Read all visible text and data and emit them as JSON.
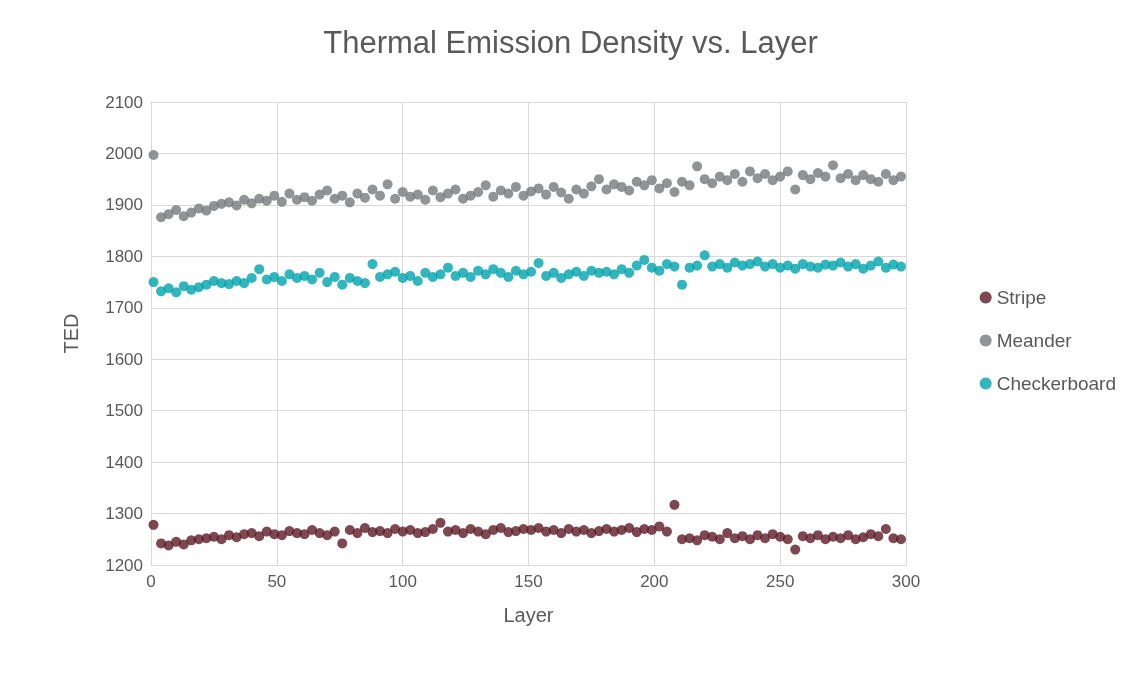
{
  "chart_data": {
    "type": "scatter",
    "title": "Thermal Emission Density vs. Layer",
    "xlabel": "Layer",
    "ylabel": "TED",
    "x": [
      1,
      4,
      7,
      10,
      13,
      16,
      19,
      22,
      25,
      28,
      31,
      34,
      37,
      40,
      43,
      46,
      49,
      52,
      55,
      58,
      61,
      64,
      67,
      70,
      73,
      76,
      79,
      82,
      85,
      88,
      91,
      94,
      97,
      100,
      103,
      106,
      109,
      112,
      115,
      118,
      121,
      124,
      127,
      130,
      133,
      136,
      139,
      142,
      145,
      148,
      151,
      154,
      157,
      160,
      163,
      166,
      169,
      172,
      175,
      178,
      181,
      184,
      187,
      190,
      193,
      196,
      199,
      202,
      205,
      208,
      211,
      214,
      217,
      220,
      223,
      226,
      229,
      232,
      235,
      238,
      241,
      244,
      247,
      250,
      253,
      256,
      259,
      262,
      265,
      268,
      271,
      274,
      277,
      280,
      283,
      286,
      289,
      292,
      295,
      298
    ],
    "series": [
      {
        "name": "Stripe",
        "color": "#5e1a27",
        "values": [
          1278,
          1242,
          1238,
          1245,
          1240,
          1248,
          1250,
          1252,
          1255,
          1250,
          1258,
          1254,
          1260,
          1262,
          1256,
          1265,
          1260,
          1258,
          1266,
          1262,
          1260,
          1268,
          1262,
          1258,
          1265,
          1242,
          1268,
          1262,
          1272,
          1264,
          1266,
          1262,
          1270,
          1265,
          1268,
          1262,
          1264,
          1270,
          1282,
          1265,
          1268,
          1262,
          1270,
          1265,
          1260,
          1268,
          1272,
          1264,
          1266,
          1270,
          1268,
          1272,
          1265,
          1268,
          1262,
          1270,
          1265,
          1268,
          1262,
          1266,
          1270,
          1265,
          1268,
          1272,
          1264,
          1270,
          1268,
          1275,
          1265,
          1317,
          1250,
          1252,
          1248,
          1258,
          1255,
          1250,
          1262,
          1252,
          1256,
          1250,
          1258,
          1252,
          1260,
          1255,
          1250,
          1230,
          1256,
          1252,
          1258,
          1250,
          1255,
          1252,
          1258,
          1250,
          1254,
          1260,
          1256,
          1270,
          1252,
          1250
        ]
      },
      {
        "name": "Meander",
        "color": "#76787b",
        "values": [
          1997,
          1876,
          1882,
          1890,
          1878,
          1885,
          1893,
          1889,
          1898,
          1902,
          1905,
          1899,
          1910,
          1903,
          1912,
          1908,
          1918,
          1906,
          1922,
          1910,
          1915,
          1908,
          1920,
          1928,
          1912,
          1918,
          1905,
          1922,
          1914,
          1930,
          1918,
          1940,
          1912,
          1925,
          1916,
          1920,
          1910,
          1928,
          1915,
          1922,
          1930,
          1912,
          1918,
          1925,
          1938,
          1916,
          1928,
          1922,
          1935,
          1918,
          1926,
          1932,
          1920,
          1935,
          1924,
          1912,
          1930,
          1922,
          1936,
          1950,
          1930,
          1940,
          1935,
          1928,
          1945,
          1938,
          1948,
          1932,
          1942,
          1925,
          1945,
          1938,
          1975,
          1950,
          1942,
          1955,
          1948,
          1960,
          1945,
          1965,
          1952,
          1960,
          1948,
          1955,
          1965,
          1930,
          1958,
          1950,
          1962,
          1955,
          1977,
          1952,
          1960,
          1948,
          1958,
          1950,
          1945,
          1960,
          1948,
          1955
        ]
      },
      {
        "name": "Checkerboard",
        "color": "#00a3ad",
        "values": [
          1750,
          1732,
          1738,
          1730,
          1742,
          1735,
          1740,
          1745,
          1752,
          1748,
          1746,
          1752,
          1748,
          1758,
          1775,
          1755,
          1760,
          1752,
          1765,
          1758,
          1762,
          1755,
          1768,
          1750,
          1760,
          1745,
          1758,
          1752,
          1748,
          1785,
          1760,
          1765,
          1770,
          1758,
          1762,
          1752,
          1768,
          1760,
          1765,
          1778,
          1762,
          1768,
          1760,
          1772,
          1765,
          1775,
          1768,
          1760,
          1772,
          1765,
          1770,
          1787,
          1762,
          1768,
          1758,
          1765,
          1770,
          1762,
          1772,
          1768,
          1770,
          1765,
          1775,
          1768,
          1782,
          1793,
          1778,
          1772,
          1785,
          1780,
          1745,
          1778,
          1782,
          1802,
          1780,
          1785,
          1778,
          1788,
          1782,
          1785,
          1790,
          1780,
          1785,
          1778,
          1782,
          1776,
          1785,
          1780,
          1778,
          1784,
          1782,
          1788,
          1780,
          1785,
          1776,
          1782,
          1790,
          1778,
          1784,
          1780
        ]
      }
    ],
    "xlim": [
      0,
      300
    ],
    "xticks": [
      0,
      50,
      100,
      150,
      200,
      250,
      300
    ],
    "ylim": [
      1200,
      2100
    ],
    "yticks": [
      1200,
      1300,
      1400,
      1500,
      1600,
      1700,
      1800,
      1900,
      2000,
      2100
    ],
    "grid": true,
    "legend": "right",
    "marker": "circle"
  }
}
